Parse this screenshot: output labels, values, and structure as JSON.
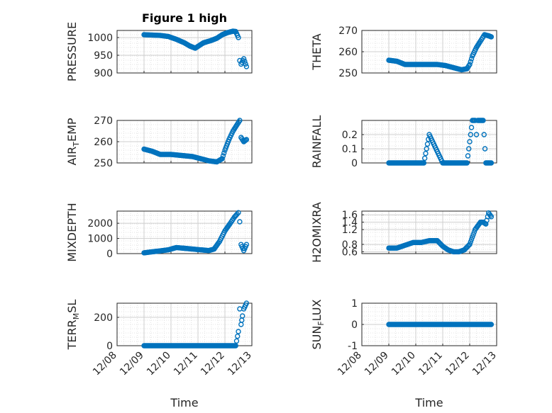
{
  "chart_data": [
    {
      "type": "scatter",
      "title": "Figure 1 high",
      "ylabel": "PRESSURE",
      "ylim": [
        900,
        1020
      ],
      "yticks": [
        900,
        950,
        1000
      ],
      "xlim": [
        0,
        5
      ],
      "x": [
        1.0,
        1.3,
        1.6,
        1.9,
        2.2,
        2.5,
        2.7,
        2.9,
        3.2,
        3.5,
        3.7,
        3.9,
        4.1,
        4.3,
        4.4,
        4.5,
        4.55,
        4.6,
        4.7,
        4.8
      ],
      "y": [
        1008,
        1007,
        1006,
        1003,
        995,
        985,
        976,
        970,
        985,
        992,
        998,
        1008,
        1014,
        1018,
        1017,
        1000,
        935,
        925,
        940,
        918
      ],
      "color": "#0072BD"
    },
    {
      "type": "scatter",
      "ylabel": "THETA",
      "ylim": [
        250,
        270
      ],
      "yticks": [
        250,
        260,
        270
      ],
      "xlim": [
        0,
        5
      ],
      "x": [
        1.0,
        1.3,
        1.6,
        2.0,
        2.4,
        2.8,
        3.1,
        3.4,
        3.7,
        3.9,
        4.0,
        4.1,
        4.25,
        4.4,
        4.55,
        4.7,
        4.8
      ],
      "y": [
        256,
        255.5,
        254,
        254,
        254,
        254,
        253.5,
        252.5,
        251.5,
        252,
        254,
        258,
        262,
        265,
        268,
        267.5,
        267
      ],
      "color": "#0072BD"
    },
    {
      "type": "scatter",
      "ylabel": "AIR_TEMP",
      "ylim": [
        250,
        270
      ],
      "yticks": [
        250,
        260,
        270
      ],
      "xlim": [
        0,
        5
      ],
      "x": [
        1.0,
        1.3,
        1.6,
        2.0,
        2.4,
        2.8,
        3.1,
        3.4,
        3.7,
        3.9,
        4.0,
        4.15,
        4.3,
        4.45,
        4.55,
        4.6,
        4.7,
        4.8
      ],
      "y": [
        256.5,
        255.5,
        254,
        254,
        253.5,
        253,
        252,
        251,
        250.5,
        252,
        256,
        261,
        265,
        268,
        270,
        262,
        260,
        261
      ],
      "color": "#0072BD"
    },
    {
      "type": "scatter",
      "ylabel": "RAINFALL",
      "ylim": [
        0,
        0.3
      ],
      "yticks": [
        0,
        0.1,
        0.2
      ],
      "xlim": [
        0,
        5
      ],
      "x": [
        1.0,
        1.5,
        2.0,
        2.3,
        2.5,
        3.0,
        3.5,
        3.9,
        4.1,
        4.2,
        4.25,
        4.3,
        4.4,
        4.5,
        4.6,
        4.7,
        4.8
      ],
      "y": [
        0,
        0,
        0,
        0,
        0.2,
        0,
        0,
        0,
        0.3,
        0.3,
        0.2,
        0.3,
        0.3,
        0.3,
        0,
        0,
        0
      ],
      "color": "#0072BD"
    },
    {
      "type": "scatter",
      "ylabel": "MIXDEPTH",
      "ylim": [
        0,
        2800
      ],
      "yticks": [
        0,
        1000,
        2000
      ],
      "xlim": [
        0,
        5
      ],
      "x": [
        1.0,
        1.3,
        1.6,
        1.9,
        2.2,
        2.5,
        2.8,
        3.1,
        3.4,
        3.6,
        3.8,
        4.0,
        4.2,
        4.35,
        4.45,
        4.5,
        4.55,
        4.6,
        4.7,
        4.8
      ],
      "y": [
        50,
        120,
        180,
        250,
        400,
        350,
        300,
        250,
        200,
        300,
        800,
        1500,
        2000,
        2400,
        2600,
        2700,
        2100,
        600,
        200,
        600
      ],
      "color": "#0072BD"
    },
    {
      "type": "scatter",
      "ylabel": "H2OMIXRA",
      "ylim": [
        0.55,
        1.7
      ],
      "yticks": [
        0.6,
        0.8,
        1.2,
        1.4,
        1.6
      ],
      "xlim": [
        0,
        5
      ],
      "x": [
        1.0,
        1.3,
        1.5,
        1.7,
        1.9,
        2.2,
        2.5,
        2.8,
        3.0,
        3.2,
        3.4,
        3.6,
        3.8,
        4.0,
        4.2,
        4.4,
        4.5,
        4.6,
        4.7,
        4.8
      ],
      "y": [
        0.7,
        0.7,
        0.75,
        0.8,
        0.85,
        0.85,
        0.9,
        0.9,
        0.75,
        0.65,
        0.6,
        0.6,
        0.65,
        0.8,
        1.2,
        1.4,
        1.4,
        1.35,
        1.65,
        1.55
      ],
      "color": "#0072BD"
    },
    {
      "type": "scatter",
      "ylabel": "TERR_MSL",
      "ylim": [
        0,
        300
      ],
      "yticks": [
        0,
        200
      ],
      "xlim": [
        0,
        5
      ],
      "xticklabels": [
        "12/08",
        "12/09",
        "12/10",
        "12/11",
        "12/12",
        "12/13"
      ],
      "xlabel": "Time",
      "x": [
        1.0,
        1.5,
        2.0,
        2.5,
        3.0,
        3.5,
        4.0,
        4.4,
        4.5,
        4.55,
        4.6,
        4.65,
        4.7,
        4.8
      ],
      "y": [
        0,
        0,
        0,
        0,
        0,
        0,
        0,
        0,
        100,
        260,
        150,
        210,
        260,
        300
      ],
      "color": "#0072BD"
    },
    {
      "type": "scatter",
      "ylabel": "SUN_FLUX",
      "ylim": [
        -1,
        1
      ],
      "yticks": [
        -1,
        0,
        1
      ],
      "xlim": [
        0,
        5
      ],
      "xticklabels": [
        "12/08",
        "12/09",
        "12/10",
        "12/11",
        "12/12",
        "12/13"
      ],
      "xlabel": "Time",
      "x": [
        1.0,
        1.5,
        2.0,
        2.5,
        3.0,
        3.5,
        4.0,
        4.5,
        4.8
      ],
      "y": [
        0,
        0,
        0,
        0,
        0,
        0,
        0,
        0,
        0
      ],
      "color": "#0072BD"
    }
  ]
}
